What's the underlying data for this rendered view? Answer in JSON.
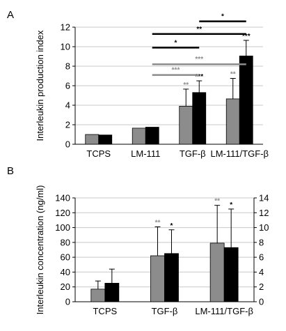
{
  "chart_data": [
    {
      "panel": "A",
      "type": "bar",
      "ylabel": "Interleukin production index",
      "ylim": [
        0,
        12
      ],
      "yticks": [
        0,
        2,
        4,
        6,
        8,
        10,
        12
      ],
      "grid": true,
      "categories": [
        "TCPS",
        "LM-111",
        "TGF-β",
        "LM-111/TGF-β"
      ],
      "series": [
        {
          "color": "#8c8c8c",
          "values": [
            1.0,
            1.65,
            3.9,
            4.65
          ],
          "errors": [
            0,
            0,
            1.75,
            2.1
          ],
          "labels": [
            "",
            "",
            "**",
            "**"
          ]
        },
        {
          "color": "#000000",
          "values": [
            0.95,
            1.75,
            5.3,
            9.05
          ],
          "errors": [
            0,
            0,
            1.2,
            1.6
          ],
          "labels": [
            "",
            "",
            "***",
            "***"
          ]
        }
      ],
      "brackets": [
        {
          "from": [
            1,
            1
          ],
          "to": [
            2,
            1
          ],
          "label": "***",
          "color": "#8c8c8c",
          "y": 7.1
        },
        {
          "from": [
            1,
            1
          ],
          "to": [
            3,
            1
          ],
          "label": "***",
          "color": "#8c8c8c",
          "y": 8.2
        },
        {
          "from": [
            1,
            1
          ],
          "to": [
            2,
            1
          ],
          "label": "*",
          "color": "#000000",
          "y": 9.9
        },
        {
          "from": [
            1,
            1
          ],
          "to": [
            3,
            1
          ],
          "label": "**",
          "color": "#000000",
          "y": 11.3
        },
        {
          "from": [
            2,
            1
          ],
          "to": [
            3,
            1
          ],
          "label": "*",
          "color": "#000000",
          "y": 12.6
        }
      ]
    },
    {
      "panel": "B",
      "type": "bar",
      "ylabel": "Interleukin concentration (ng/ml)",
      "ylim": [
        0,
        140
      ],
      "yticks": [
        0,
        20,
        40,
        60,
        80,
        100,
        120,
        140
      ],
      "y2lim": [
        0,
        14
      ],
      "y2ticks": [
        0,
        2,
        4,
        6,
        8,
        10,
        12,
        14
      ],
      "grid": true,
      "categories": [
        "TCPS",
        "TGF-β",
        "LM-111/TGF-β"
      ],
      "series": [
        {
          "color": "#8c8c8c",
          "axis": "left",
          "values": [
            17,
            62,
            79
          ],
          "errors": [
            11,
            39,
            51
          ],
          "labels": [
            "",
            "**",
            "**"
          ]
        },
        {
          "color": "#000000",
          "axis": "right",
          "values": [
            2.5,
            6.5,
            7.3
          ],
          "errors": [
            1.9,
            3.2,
            5.2
          ],
          "labels": [
            "",
            "*",
            "*"
          ]
        }
      ]
    }
  ]
}
